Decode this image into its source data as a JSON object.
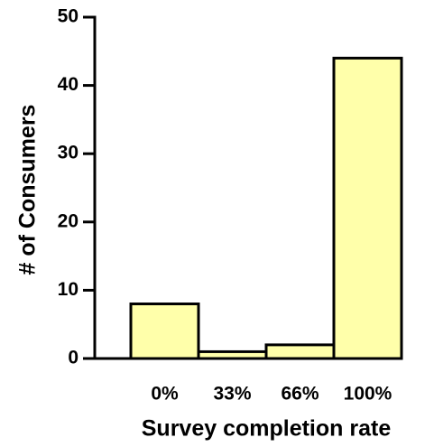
{
  "chart_data": {
    "type": "bar",
    "x_label": "Survey completion rate",
    "y_label": "# of Consumers",
    "categories": [
      "0%",
      "33%",
      "66%",
      "100%"
    ],
    "values": [
      8,
      1,
      2,
      44
    ],
    "color": "#ffffaa",
    "ylim": [
      0,
      50
    ],
    "yticks": [
      0,
      10,
      20,
      30,
      40,
      50
    ]
  }
}
